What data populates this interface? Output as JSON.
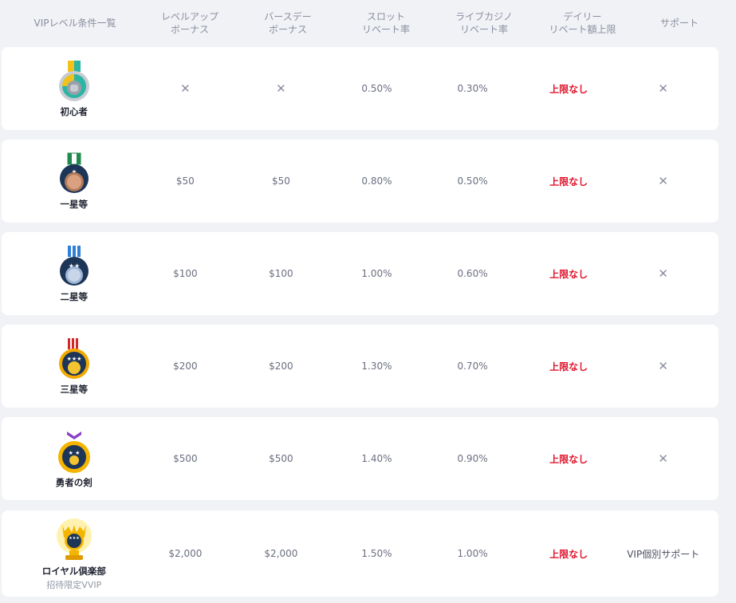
{
  "header": {
    "col_level": "VIPレベル条件一覧",
    "col_levelup": "レベルアップ\nボーナス",
    "col_birthday": "バースデー\nボーナス",
    "col_slot": "スロット\nリベート率",
    "col_live": "ライブカジノ\nリベート率",
    "col_daily": "デイリー\nリベート額上限",
    "col_support": "サポート"
  },
  "rows": [
    {
      "name": "初心者",
      "levelup": "✕",
      "birthday": "✕",
      "slot": "0.50%",
      "live": "0.30%",
      "daily": "上限なし",
      "support": "✕",
      "icon": "beginner-medal-icon"
    },
    {
      "name": "一星等",
      "levelup": "$50",
      "birthday": "$50",
      "slot": "0.80%",
      "live": "0.50%",
      "daily": "上限なし",
      "support": "✕",
      "icon": "one-star-medal-icon"
    },
    {
      "name": "二星等",
      "levelup": "$100",
      "birthday": "$100",
      "slot": "1.00%",
      "live": "0.60%",
      "daily": "上限なし",
      "support": "✕",
      "icon": "two-star-medal-icon"
    },
    {
      "name": "三星等",
      "levelup": "$200",
      "birthday": "$200",
      "slot": "1.30%",
      "live": "0.70%",
      "daily": "上限なし",
      "support": "✕",
      "icon": "three-star-medal-icon"
    },
    {
      "name": "勇者の剣",
      "levelup": "$500",
      "birthday": "$500",
      "slot": "1.40%",
      "live": "0.90%",
      "daily": "上限なし",
      "support": "✕",
      "icon": "hero-sword-medal-icon"
    },
    {
      "name": "ロイヤル倶楽部",
      "sub": "招待限定VVIP",
      "levelup": "$2,000",
      "birthday": "$2,000",
      "slot": "1.50%",
      "live": "1.00%",
      "daily": "上限なし",
      "support": "VIP個別サポート",
      "icon": "royal-club-trophy-icon"
    }
  ],
  "colors": {
    "background": "#f1f2f6",
    "row": "#ffffff",
    "unlimited_text": "#e0152b",
    "header_text": "#8a8fa0"
  }
}
